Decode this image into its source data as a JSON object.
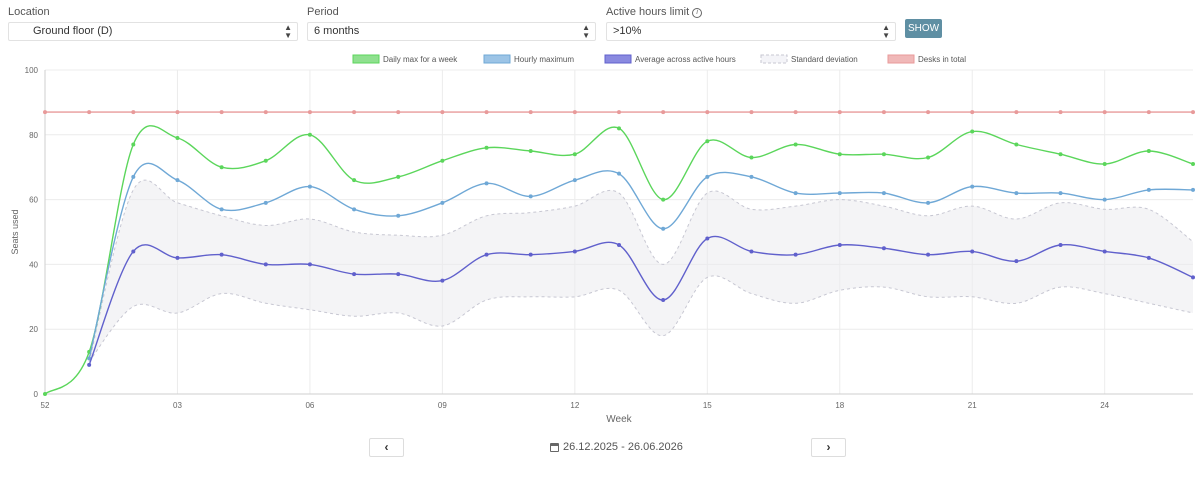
{
  "filters": {
    "location": {
      "label": "Location",
      "value": "Ground floor (D)"
    },
    "period": {
      "label": "Period",
      "value": "6 months"
    },
    "active_hours": {
      "label": "Active hours limit",
      "value": ">10%"
    },
    "show_label": "SHOW"
  },
  "navigation": {
    "prev_label": "‹",
    "next_label": "›",
    "date_range": "26.12.2025 - 26.06.2026"
  },
  "colors": {
    "daily_max": "#5bd65b",
    "hourly_max": "#6fa8d6",
    "average": "#6060cc",
    "std_dev": "#c7c7d2",
    "desks_total": "#e89a9a",
    "button": "#5f8fa3"
  },
  "chart_data": {
    "type": "line",
    "title": "",
    "xlabel": "Week",
    "ylabel": "Seats used",
    "ylim": [
      0,
      100
    ],
    "yticks": [
      0,
      20,
      40,
      60,
      80,
      100
    ],
    "xticks": [
      "52",
      "03",
      "06",
      "09",
      "12",
      "15",
      "18",
      "21",
      "24"
    ],
    "x": [
      "52",
      "01",
      "02",
      "03",
      "04",
      "05",
      "06",
      "07",
      "08",
      "09",
      "10",
      "11",
      "12",
      "13",
      "14",
      "15",
      "16",
      "17",
      "18",
      "19",
      "20",
      "21",
      "22",
      "23",
      "24",
      "25",
      "26"
    ],
    "grid": true,
    "legend_position": "top",
    "legend": [
      "Daily max for a week",
      "Hourly maximum",
      "Average across active hours",
      "Standard deviation",
      "Desks in total"
    ],
    "series": [
      {
        "name": "Daily max for a week",
        "values": [
          0,
          13,
          77,
          79,
          70,
          72,
          80,
          66,
          67,
          72,
          76,
          75,
          74,
          82,
          60,
          78,
          73,
          77,
          74,
          74,
          73,
          81,
          77,
          74,
          71,
          75,
          71
        ]
      },
      {
        "name": "Hourly maximum",
        "values": [
          null,
          11,
          67,
          66,
          57,
          59,
          64,
          57,
          55,
          59,
          65,
          61,
          66,
          68,
          51,
          67,
          67,
          62,
          62,
          62,
          59,
          64,
          62,
          62,
          60,
          63,
          63
        ]
      },
      {
        "name": "Average across active hours",
        "values": [
          null,
          9,
          44,
          42,
          43,
          40,
          40,
          37,
          37,
          35,
          43,
          43,
          44,
          46,
          29,
          48,
          44,
          43,
          46,
          45,
          43,
          44,
          41,
          46,
          44,
          42,
          36
        ]
      },
      {
        "name": "Standard deviation",
        "upper": [
          null,
          10,
          63,
          59,
          55,
          52,
          54,
          50,
          49,
          49,
          55,
          56,
          58,
          62,
          40,
          62,
          57,
          58,
          60,
          58,
          55,
          58,
          54,
          59,
          57,
          57,
          47
        ],
        "lower": [
          null,
          10,
          27,
          25,
          31,
          28,
          26,
          24,
          25,
          21,
          29,
          30,
          30,
          32,
          18,
          36,
          31,
          28,
          32,
          33,
          30,
          30,
          28,
          33,
          31,
          28,
          25
        ]
      },
      {
        "name": "Desks in total",
        "values": [
          87,
          87,
          87,
          87,
          87,
          87,
          87,
          87,
          87,
          87,
          87,
          87,
          87,
          87,
          87,
          87,
          87,
          87,
          87,
          87,
          87,
          87,
          87,
          87,
          87,
          87,
          87
        ]
      }
    ]
  }
}
